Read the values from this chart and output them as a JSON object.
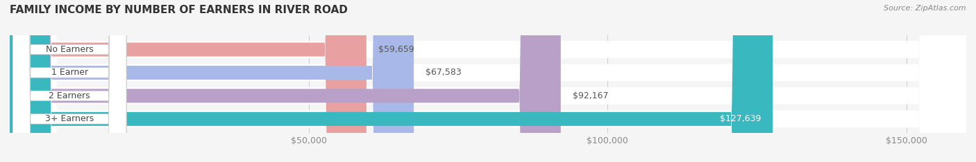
{
  "title": "FAMILY INCOME BY NUMBER OF EARNERS IN RIVER ROAD",
  "source": "Source: ZipAtlas.com",
  "categories": [
    "No Earners",
    "1 Earner",
    "2 Earners",
    "3+ Earners"
  ],
  "values": [
    59659,
    67583,
    92167,
    127639
  ],
  "labels": [
    "$59,659",
    "$67,583",
    "$92,167",
    "$127,639"
  ],
  "bar_colors": [
    "#e8a0a0",
    "#a8b8e8",
    "#b8a0c8",
    "#3ab8c0"
  ],
  "label_colors": [
    "#666666",
    "#666666",
    "#666666",
    "#ffffff"
  ],
  "category_bg_colors": [
    "#e8a0a0",
    "#a8b8e8",
    "#b8a0c8",
    "#3ab8c0"
  ],
  "xlim": [
    0,
    160000
  ],
  "xticks": [
    50000,
    100000,
    150000
  ],
  "xtick_labels": [
    "$50,000",
    "$100,000",
    "$150,000"
  ],
  "bar_height": 0.6,
  "background_color": "#f5f5f5",
  "title_fontsize": 11,
  "source_fontsize": 8,
  "tick_fontsize": 9,
  "label_fontsize": 9,
  "category_fontsize": 9
}
